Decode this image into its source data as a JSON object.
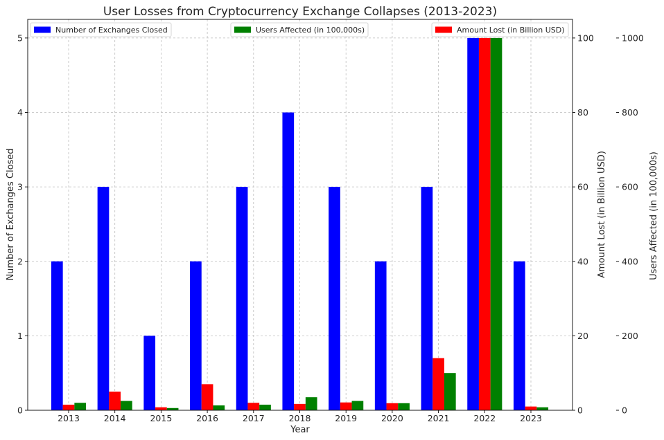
{
  "chart_data": {
    "type": "bar",
    "title": "User Losses from Cryptocurrency Exchange Collapses (2013-2023)",
    "xlabel": "Year",
    "categories": [
      "2013",
      "2014",
      "2015",
      "2016",
      "2017",
      "2018",
      "2019",
      "2020",
      "2021",
      "2022",
      "2023"
    ],
    "axes": {
      "left": {
        "label": "Number of Exchanges Closed",
        "ylim": [
          0,
          5.25
        ],
        "ticks": [
          0,
          1,
          2,
          3,
          4,
          5
        ]
      },
      "right1": {
        "label": "Amount Lost (in Billion USD)",
        "ylim": [
          0,
          105
        ],
        "ticks": [
          0,
          20,
          40,
          60,
          80,
          100
        ]
      },
      "right2": {
        "label": "Users Affected (in 100,000s)",
        "ylim": [
          0,
          1050
        ],
        "ticks": [
          0,
          200,
          400,
          600,
          800,
          1000
        ]
      }
    },
    "series": [
      {
        "name": "Number of Exchanges Closed",
        "axis": "left",
        "color": "#0000ff",
        "values": [
          2,
          3,
          1,
          2,
          3,
          4,
          3,
          2,
          3,
          5,
          2
        ]
      },
      {
        "name": "Amount Lost (in Billion USD)",
        "axis": "right1",
        "color": "#ff0000",
        "values": [
          1.5,
          5,
          0.8,
          7,
          2,
          1.7,
          2.1,
          1.9,
          14,
          100,
          1
        ]
      },
      {
        "name": "Users Affected (in 100,000s)",
        "axis": "right2",
        "color": "#008000",
        "values": [
          20,
          25,
          6,
          13,
          15,
          35,
          25,
          19,
          100,
          1000,
          8
        ]
      }
    ],
    "legends": [
      {
        "label": "Number of Exchanges Closed",
        "color": "#0000ff",
        "placement": "upper-left"
      },
      {
        "label": "Users Affected (in 100,000s)",
        "color": "#008000",
        "placement": "upper-center"
      },
      {
        "label": "Amount Lost (in Billion USD)",
        "color": "#ff0000",
        "placement": "upper-right"
      }
    ],
    "grid": true
  }
}
